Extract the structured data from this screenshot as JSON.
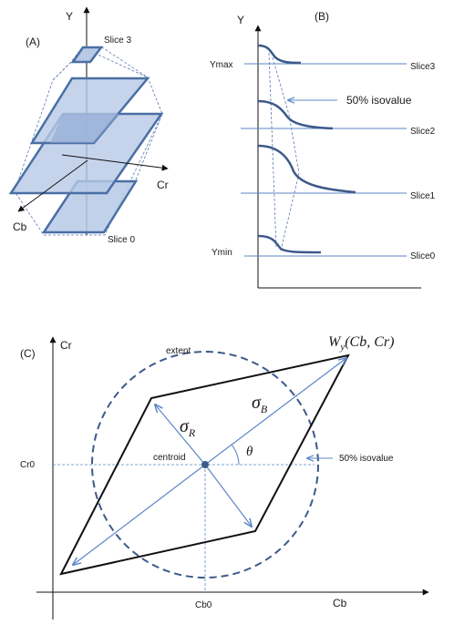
{
  "panel_a": {
    "label": "(A)",
    "y_axis": "Y",
    "cr_axis": "Cr",
    "cb_axis": "Cb",
    "slice_top": "Slice 3",
    "slice_bottom": "Slice 0"
  },
  "panel_b": {
    "label": "(B)",
    "y_axis": "Y",
    "ymax": "Ymax",
    "ymin": "Ymin",
    "isovalue": "50% isovalue",
    "slices": [
      "Slice3",
      "Slice2",
      "Slice1",
      "Slice0"
    ]
  },
  "panel_c": {
    "label": "(C)",
    "y_axis": "Cr",
    "x_axis": "Cb",
    "cr0": "Cr0",
    "cb0": "Cb0",
    "extent": "extent",
    "centroid": "centroid",
    "isovalue": "50% isovalue",
    "sigma_r": "σ",
    "sigma_r_sub": "R",
    "sigma_b": "σ",
    "sigma_b_sub": "B",
    "theta": "θ",
    "function_label": "W",
    "function_sub": "y",
    "function_args": "(Cb, Cr)"
  },
  "colors": {
    "slice_fill": "#b7c9e6",
    "slice_stroke": "#4a6fa5",
    "curve": "#3d5a8a",
    "guide": "#5b86c6",
    "dashed": "#5b7ab0"
  }
}
